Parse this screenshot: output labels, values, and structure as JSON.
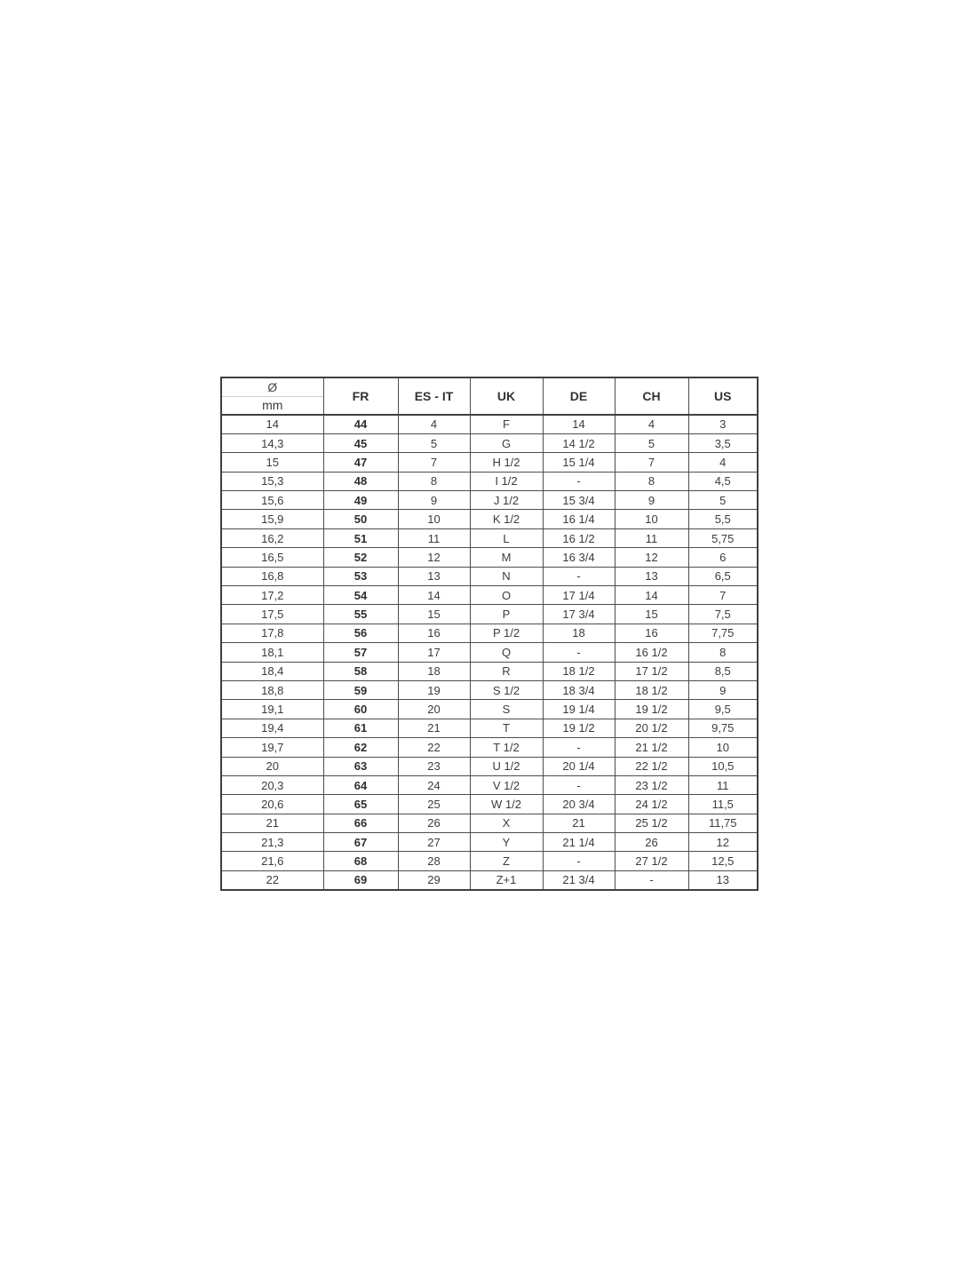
{
  "colors": {
    "background": "#ffffff",
    "border": "#4d4d4d",
    "text": "#3c3c3c",
    "header_divider": "#cfcfcf"
  },
  "table": {
    "header": {
      "diameter_symbol": "Ø",
      "diameter_unit": "mm",
      "columns": [
        "FR",
        "ES - IT",
        "UK",
        "DE",
        "CH",
        "US"
      ]
    },
    "rows": [
      [
        "14",
        "44",
        "4",
        "F",
        "14",
        "4",
        "3"
      ],
      [
        "14,3",
        "45",
        "5",
        "G",
        "14 1/2",
        "5",
        "3,5"
      ],
      [
        "15",
        "47",
        "7",
        "H 1/2",
        "15 1/4",
        "7",
        "4"
      ],
      [
        "15,3",
        "48",
        "8",
        "I 1/2",
        "-",
        "8",
        "4,5"
      ],
      [
        "15,6",
        "49",
        "9",
        "J 1/2",
        "15 3/4",
        "9",
        "5"
      ],
      [
        "15,9",
        "50",
        "10",
        "K 1/2",
        "16 1/4",
        "10",
        "5,5"
      ],
      [
        "16,2",
        "51",
        "11",
        "L",
        "16 1/2",
        "11",
        "5,75"
      ],
      [
        "16,5",
        "52",
        "12",
        "M",
        "16 3/4",
        "12",
        "6"
      ],
      [
        "16,8",
        "53",
        "13",
        "N",
        "-",
        "13",
        "6,5"
      ],
      [
        "17,2",
        "54",
        "14",
        "O",
        "17 1/4",
        "14",
        "7"
      ],
      [
        "17,5",
        "55",
        "15",
        "P",
        "17 3/4",
        "15",
        "7,5"
      ],
      [
        "17,8",
        "56",
        "16",
        "P 1/2",
        "18",
        "16",
        "7,75"
      ],
      [
        "18,1",
        "57",
        "17",
        "Q",
        "-",
        "16 1/2",
        "8"
      ],
      [
        "18,4",
        "58",
        "18",
        "R",
        "18 1/2",
        "17 1/2",
        "8,5"
      ],
      [
        "18,8",
        "59",
        "19",
        "S 1/2",
        "18 3/4",
        "18 1/2",
        "9"
      ],
      [
        "19,1",
        "60",
        "20",
        "S",
        "19 1/4",
        "19 1/2",
        "9,5"
      ],
      [
        "19,4",
        "61",
        "21",
        "T",
        "19 1/2",
        "20 1/2",
        "9,75"
      ],
      [
        "19,7",
        "62",
        "22",
        "T 1/2",
        "-",
        "21 1/2",
        "10"
      ],
      [
        "20",
        "63",
        "23",
        "U 1/2",
        "20 1/4",
        "22 1/2",
        "10,5"
      ],
      [
        "20,3",
        "64",
        "24",
        "V 1/2",
        "-",
        "23 1/2",
        "11"
      ],
      [
        "20,6",
        "65",
        "25",
        "W 1/2",
        "20 3/4",
        "24 1/2",
        "11,5"
      ],
      [
        "21",
        "66",
        "26",
        "X",
        "21",
        "25 1/2",
        "11,75"
      ],
      [
        "21,3",
        "67",
        "27",
        "Y",
        "21 1/4",
        "26",
        "12"
      ],
      [
        "21,6",
        "68",
        "28",
        "Z",
        "-",
        "27 1/2",
        "12,5"
      ],
      [
        "22",
        "69",
        "29",
        "Z+1",
        "21 3/4",
        "-",
        "13"
      ]
    ]
  }
}
